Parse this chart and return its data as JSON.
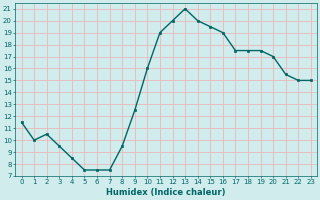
{
  "x": [
    0,
    1,
    2,
    3,
    4,
    5,
    6,
    7,
    8,
    9,
    10,
    11,
    12,
    13,
    14,
    15,
    16,
    17,
    18,
    19,
    20,
    21,
    22,
    23
  ],
  "y": [
    11.5,
    10.0,
    10.5,
    9.5,
    8.5,
    7.5,
    7.5,
    7.5,
    9.5,
    12.5,
    16.0,
    19.0,
    20.0,
    21.0,
    20.0,
    19.5,
    19.0,
    17.5,
    17.5,
    17.5,
    17.0,
    15.5,
    15.0,
    15.0
  ],
  "bg_color": "#d0ecec",
  "grid_color": "#e8b8b8",
  "line_color": "#006666",
  "marker_color": "#006666",
  "xlabel": "Humidex (Indice chaleur)",
  "ylim": [
    7,
    21.5
  ],
  "xlim": [
    -0.5,
    23.5
  ],
  "yticks": [
    7,
    8,
    9,
    10,
    11,
    12,
    13,
    14,
    15,
    16,
    17,
    18,
    19,
    20,
    21
  ],
  "xticks": [
    0,
    1,
    2,
    3,
    4,
    5,
    6,
    7,
    8,
    9,
    10,
    11,
    12,
    13,
    14,
    15,
    16,
    17,
    18,
    19,
    20,
    21,
    22,
    23
  ],
  "tick_fontsize": 5.0,
  "xlabel_fontsize": 6.0,
  "linewidth": 1.0,
  "markersize": 2.0
}
